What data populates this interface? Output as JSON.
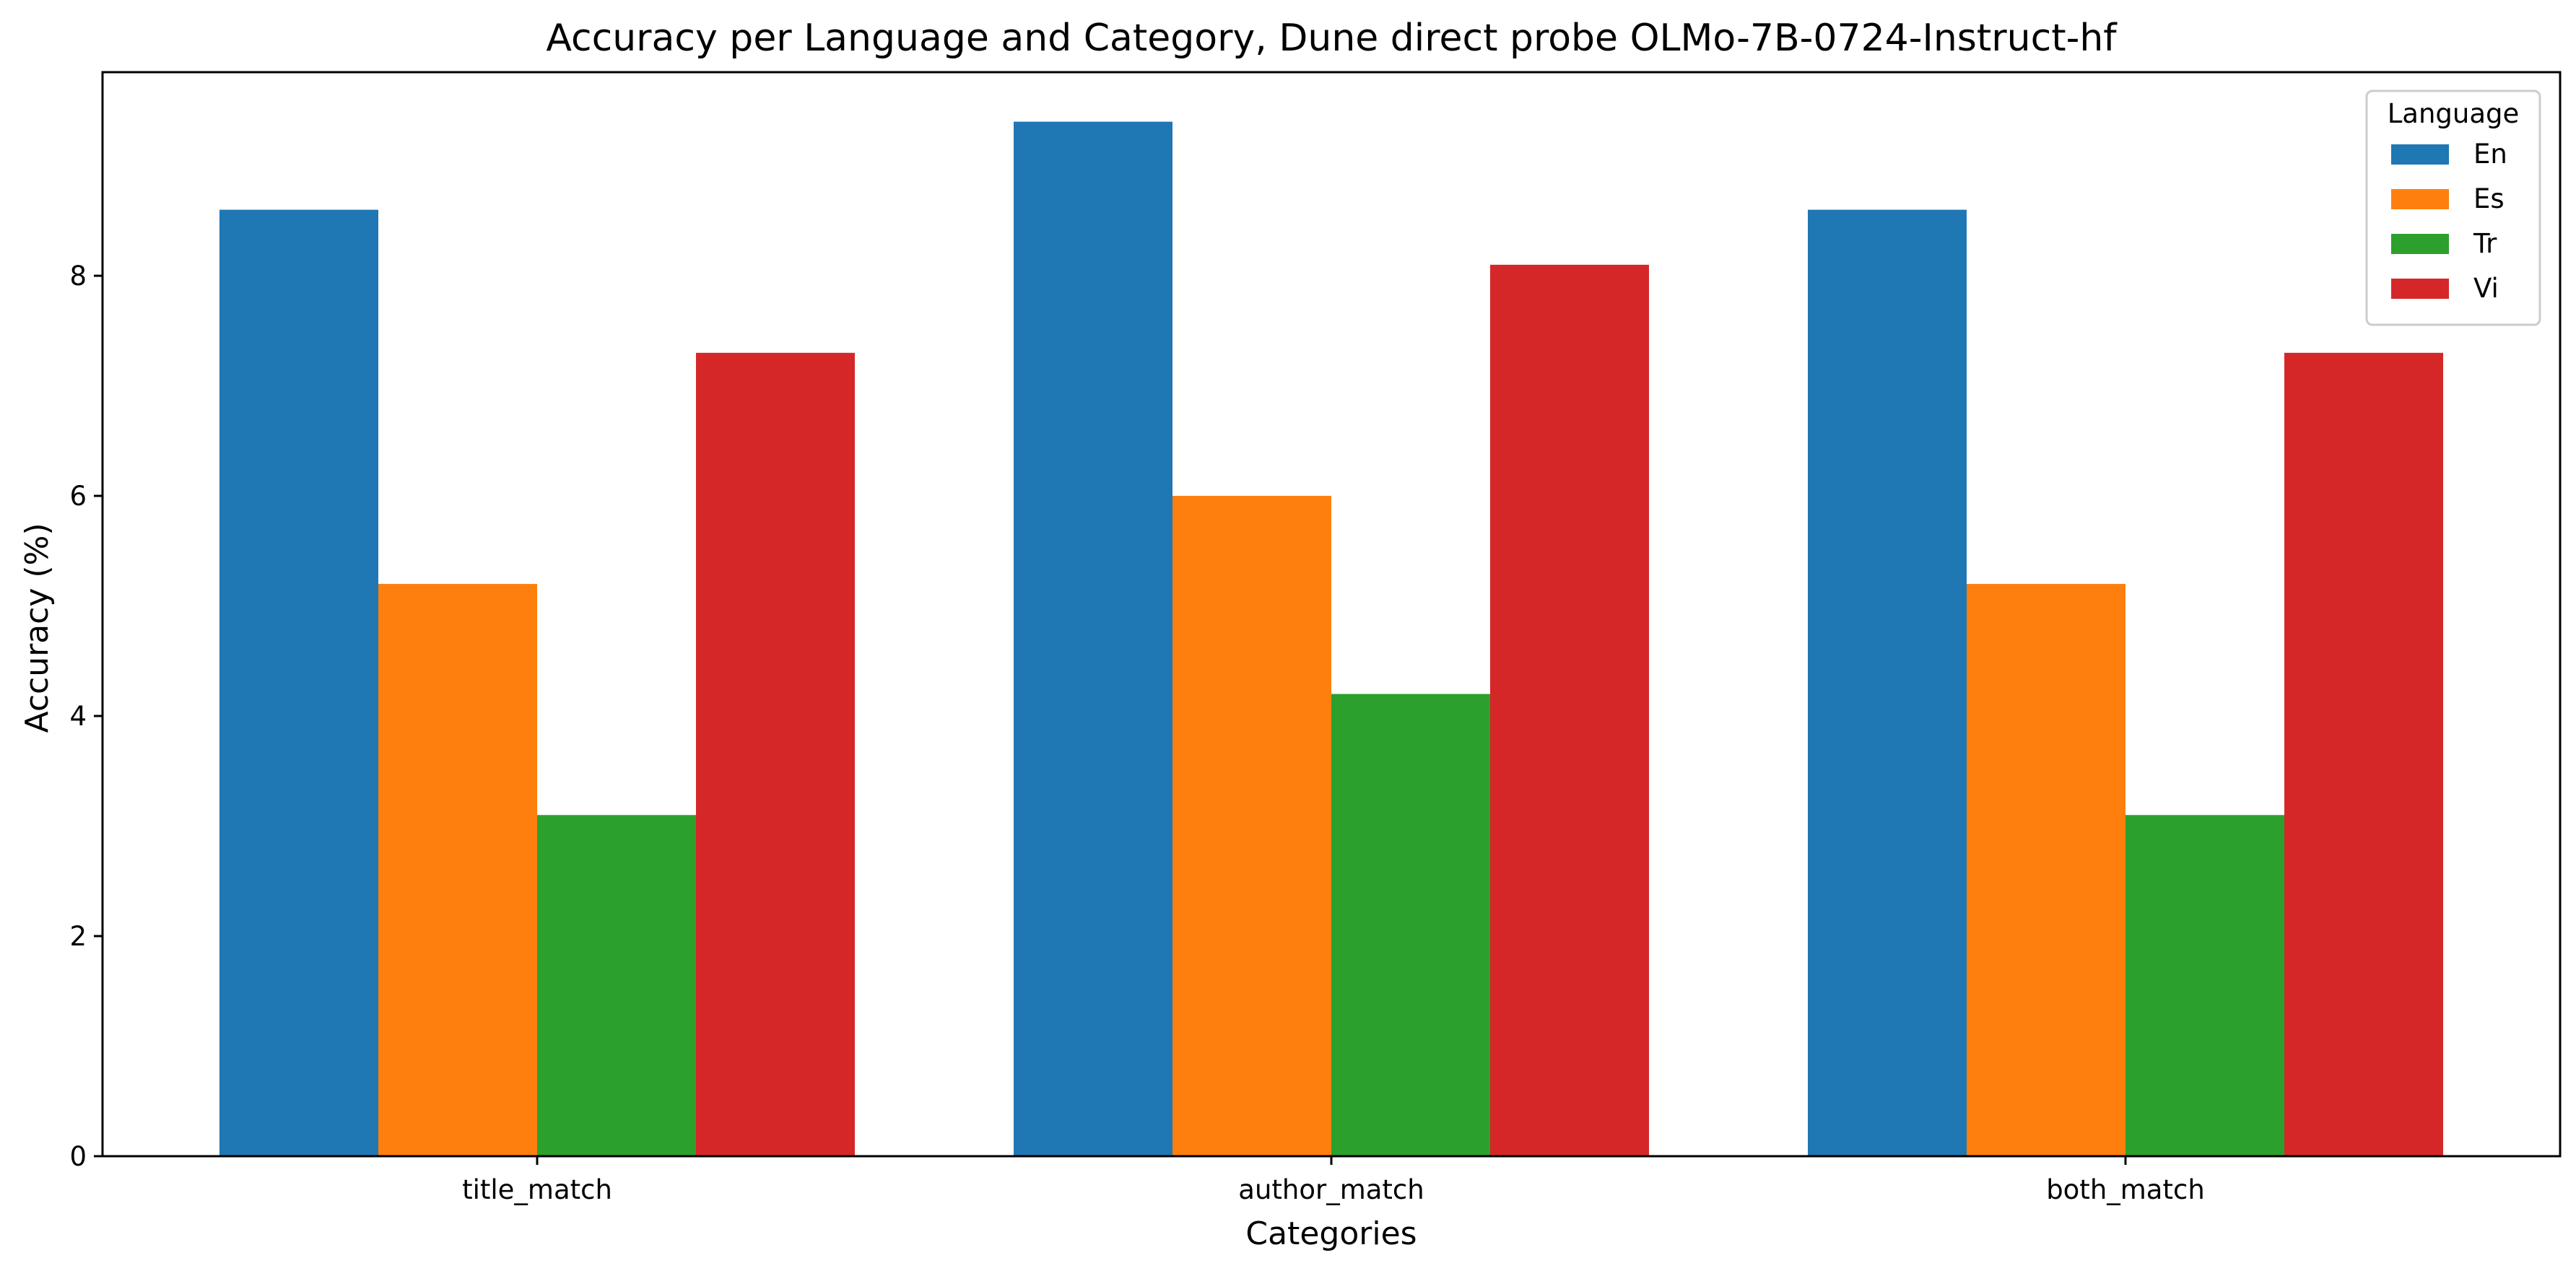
{
  "chart_data": {
    "type": "bar",
    "title": "Accuracy per Language and Category, Dune direct probe OLMo-7B-0724-Instruct-hf",
    "xlabel": "Categories",
    "ylabel": "Accuracy (%)",
    "categories": [
      "title_match",
      "author_match",
      "both_match"
    ],
    "series": [
      {
        "name": "En",
        "color": "#1f77b4",
        "values": [
          8.6,
          9.4,
          8.6
        ]
      },
      {
        "name": "Es",
        "color": "#ff7f0e",
        "values": [
          5.2,
          6.0,
          5.2
        ]
      },
      {
        "name": "Tr",
        "color": "#2ca02c",
        "values": [
          3.1,
          4.2,
          3.1
        ]
      },
      {
        "name": "Vi",
        "color": "#d62728",
        "values": [
          7.3,
          8.1,
          7.3
        ]
      }
    ],
    "ylim": [
      0,
      9.85
    ],
    "yticks": [
      0,
      2,
      4,
      6,
      8
    ],
    "grid": false,
    "legend": {
      "title": "Language",
      "position": "top-right"
    }
  }
}
